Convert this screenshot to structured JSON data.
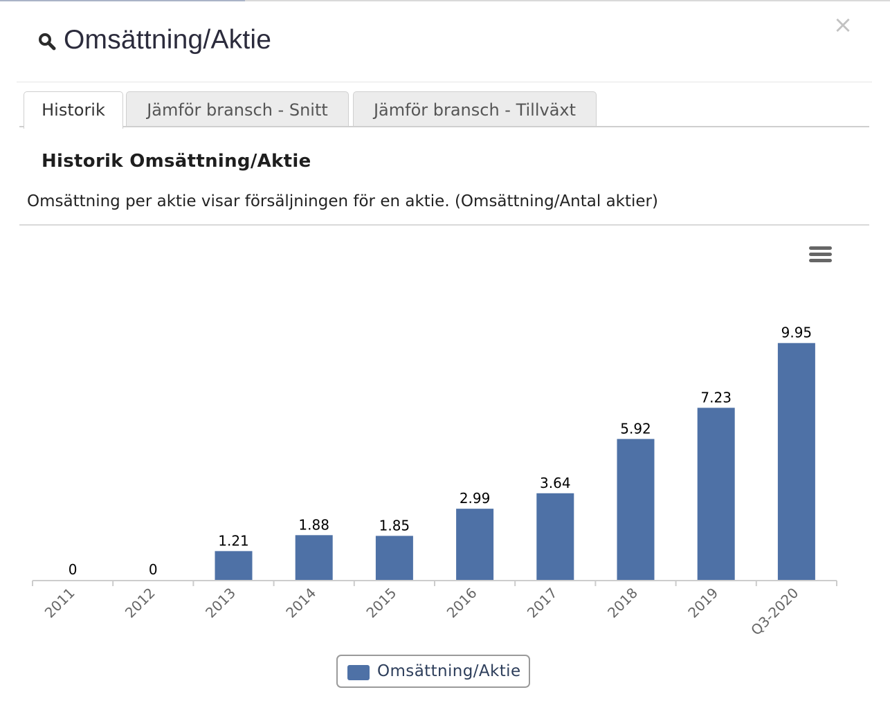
{
  "modal": {
    "title": "Omsättning/Aktie",
    "close_label": "×"
  },
  "tabs": [
    {
      "label": "Historik",
      "active": true
    },
    {
      "label": "Jämför bransch - Snitt",
      "active": false
    },
    {
      "label": "Jämför bransch - Tillväxt",
      "active": false
    }
  ],
  "section": {
    "title": "Historik Omsättning/Aktie",
    "description": "Omsättning per aktie visar försäljningen för en aktie. (Omsättning/Antal aktier)"
  },
  "colors": {
    "bar": "#4e71a6",
    "axis": "#cccccc",
    "tick_label": "#666666",
    "data_label": "#000000"
  },
  "chart_data": {
    "type": "bar",
    "title": "",
    "xlabel": "",
    "ylabel": "",
    "ylim": [
      0,
      10
    ],
    "grid": false,
    "legend_placement": "bottom-center",
    "categories": [
      "2011",
      "2012",
      "2013",
      "2014",
      "2015",
      "2016",
      "2017",
      "2018",
      "2019",
      "Q3-2020"
    ],
    "series": [
      {
        "name": "Omsättning/Aktie",
        "values": [
          0,
          0,
          1.21,
          1.88,
          1.85,
          2.99,
          3.64,
          5.92,
          7.23,
          9.95
        ],
        "labels": [
          "0",
          "0",
          "1.21",
          "1.88",
          "1.85",
          "2.99",
          "3.64",
          "5.92",
          "7.23",
          "9.95"
        ]
      }
    ]
  },
  "legend": {
    "label": "Omsättning/Aktie"
  }
}
